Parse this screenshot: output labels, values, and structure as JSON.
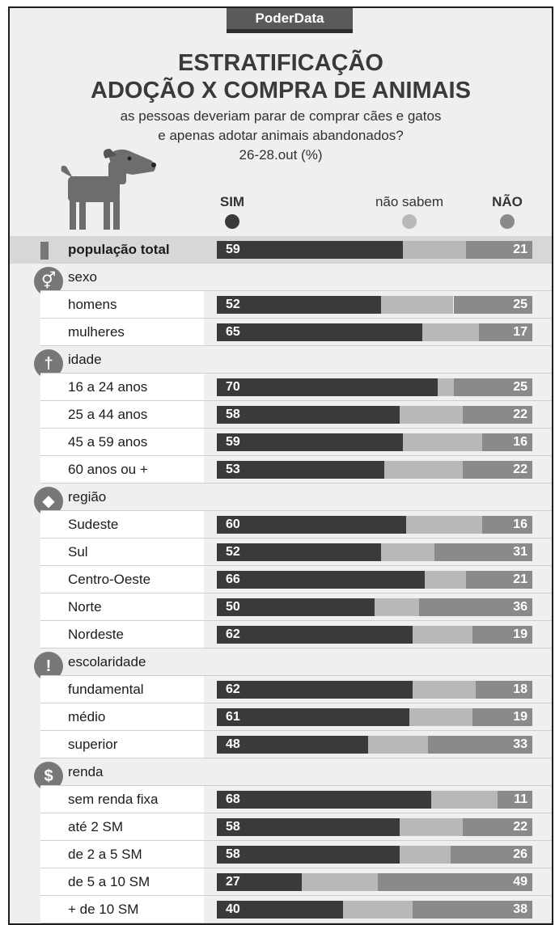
{
  "brand": "PoderData",
  "title_line1": "ESTRATIFICAÇÃO",
  "title_line2": "ADOÇÃO X COMPRA DE ANIMAIS",
  "subtitle_line1": "as pessoas deveriam parar de comprar cães e gatos",
  "subtitle_line2": "e apenas adotar animais abandonados?",
  "dateline": "26-28.out  (%)",
  "legend": [
    {
      "label": "SIM",
      "color": "#3a3a3a",
      "bold": true
    },
    {
      "label": "não sabem",
      "color": "#b8b8b8",
      "bold": false
    },
    {
      "label": "NÃO",
      "color": "#8a8a8a",
      "bold": true
    }
  ],
  "colors": {
    "sim": "#3a3a3a",
    "nao_sabem": "#b8b8b8",
    "nao": "#8a8a8a"
  },
  "chart_data": {
    "type": "bar",
    "stacked": true,
    "orientation": "horizontal",
    "unit": "%",
    "series": [
      {
        "name": "SIM"
      },
      {
        "name": "não sabem"
      },
      {
        "name": "NÃO"
      }
    ],
    "rows": [
      {
        "kind": "total",
        "label": "população total",
        "sim": 59,
        "nao": 21
      },
      {
        "kind": "category",
        "label": "sexo",
        "icon": "gender-icon"
      },
      {
        "kind": "data",
        "label": "homens",
        "sim": 52,
        "nao": 25
      },
      {
        "kind": "data",
        "label": "mulheres",
        "sim": 65,
        "nao": 17
      },
      {
        "kind": "category",
        "label": "idade",
        "icon": "person-icon"
      },
      {
        "kind": "data",
        "label": "16 a 24 anos",
        "sim": 70,
        "nao": 25
      },
      {
        "kind": "data",
        "label": "25 a 44 anos",
        "sim": 58,
        "nao": 22
      },
      {
        "kind": "data",
        "label": "45 a 59 anos",
        "sim": 59,
        "nao": 16
      },
      {
        "kind": "data",
        "label": "60 anos ou +",
        "sim": 53,
        "nao": 22
      },
      {
        "kind": "category",
        "label": "região",
        "icon": "brazil-map-icon"
      },
      {
        "kind": "data",
        "label": "Sudeste",
        "sim": 60,
        "nao": 16
      },
      {
        "kind": "data",
        "label": "Sul",
        "sim": 52,
        "nao": 31
      },
      {
        "kind": "data",
        "label": "Centro-Oeste",
        "sim": 66,
        "nao": 21
      },
      {
        "kind": "data",
        "label": "Norte",
        "sim": 50,
        "nao": 36
      },
      {
        "kind": "data",
        "label": "Nordeste",
        "sim": 62,
        "nao": 19
      },
      {
        "kind": "category",
        "label": "escolaridade",
        "icon": "exclamation-icon"
      },
      {
        "kind": "data",
        "label": "fundamental",
        "sim": 62,
        "nao": 18
      },
      {
        "kind": "data",
        "label": "médio",
        "sim": 61,
        "nao": 19
      },
      {
        "kind": "data",
        "label": "superior",
        "sim": 48,
        "nao": 33
      },
      {
        "kind": "category",
        "label": "renda",
        "icon": "dollar-icon"
      },
      {
        "kind": "data",
        "label": "sem renda fixa",
        "sim": 68,
        "nao": 11
      },
      {
        "kind": "data",
        "label": "até 2 SM",
        "sim": 58,
        "nao": 22
      },
      {
        "kind": "data",
        "label": "de 2 a 5 SM",
        "sim": 58,
        "nao": 26
      },
      {
        "kind": "data",
        "label": "de 5 a 10 SM",
        "sim": 27,
        "nao": 49
      },
      {
        "kind": "data",
        "label": "+ de 10 SM",
        "sim": 40,
        "nao": 38
      }
    ]
  }
}
